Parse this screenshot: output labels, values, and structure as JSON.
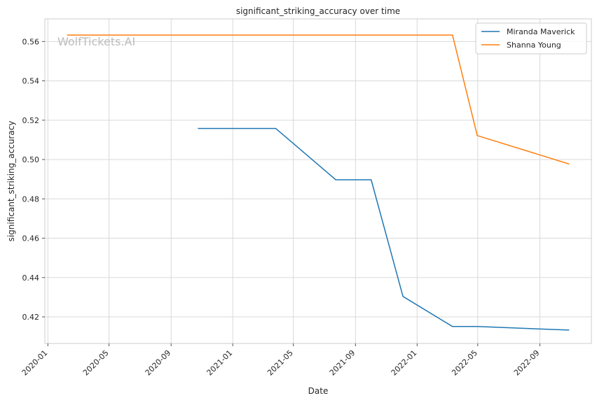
{
  "watermark": "WolfTickets.AI",
  "chart_data": {
    "type": "line",
    "title": "significant_striking_accuracy over time",
    "xlabel": "Date",
    "ylabel": "significant_striking_accuracy",
    "x_axis_type": "date",
    "xlim": [
      "2019-12-26",
      "2022-12-12"
    ],
    "ylim": [
      0.4065,
      0.5715
    ],
    "x_ticks": [
      "2020-01",
      "2020-05",
      "2020-09",
      "2021-01",
      "2021-05",
      "2021-09",
      "2022-01",
      "2022-05",
      "2022-09"
    ],
    "y_ticks": [
      0.42,
      0.44,
      0.46,
      0.48,
      0.5,
      0.52,
      0.54,
      0.56
    ],
    "y_tick_labels": [
      "0.42",
      "0.44",
      "0.46",
      "0.48",
      "0.50",
      "0.52",
      "0.54",
      "0.56"
    ],
    "grid": true,
    "legend_position": "top-right",
    "series": [
      {
        "name": "Miranda Maverick",
        "color": "#1f77b4",
        "points": [
          {
            "x": "2020-10-24",
            "y": 0.5158
          },
          {
            "x": "2021-03-27",
            "y": 0.5158
          },
          {
            "x": "2021-07-24",
            "y": 0.4897
          },
          {
            "x": "2021-10-02",
            "y": 0.4897
          },
          {
            "x": "2021-12-04",
            "y": 0.4304
          },
          {
            "x": "2022-03-12",
            "y": 0.4151
          },
          {
            "x": "2022-04-30",
            "y": 0.4151
          },
          {
            "x": "2022-10-29",
            "y": 0.4133
          }
        ]
      },
      {
        "name": "Shanna Young",
        "color": "#ff7f0e",
        "points": [
          {
            "x": "2020-02-08",
            "y": 0.5633
          },
          {
            "x": "2022-03-12",
            "y": 0.5633
          },
          {
            "x": "2022-04-30",
            "y": 0.5122
          },
          {
            "x": "2022-10-29",
            "y": 0.4977
          }
        ]
      }
    ]
  }
}
